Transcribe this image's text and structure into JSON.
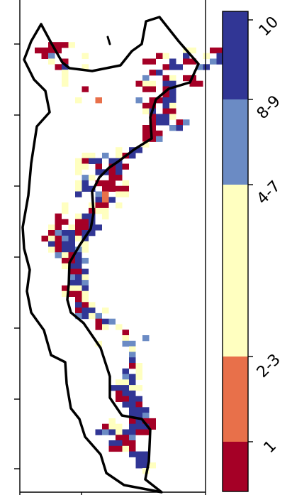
{
  "colorbar": {
    "entries": [
      {
        "label": "1",
        "color": "#a50026"
      },
      {
        "label": "2-3",
        "color": "#e8704a"
      },
      {
        "label": "4-7",
        "color": "#ffffc0"
      },
      {
        "label": "8-9",
        "color": "#6b8bc4"
      },
      {
        "label": "10",
        "color": "#313695"
      }
    ]
  },
  "cells": {
    "color_key": {
      "r": "#a50026",
      "o": "#e8704a",
      "y": "#ffffc0",
      "l": "#6b8bc4",
      "b": "#313695"
    }
  }
}
